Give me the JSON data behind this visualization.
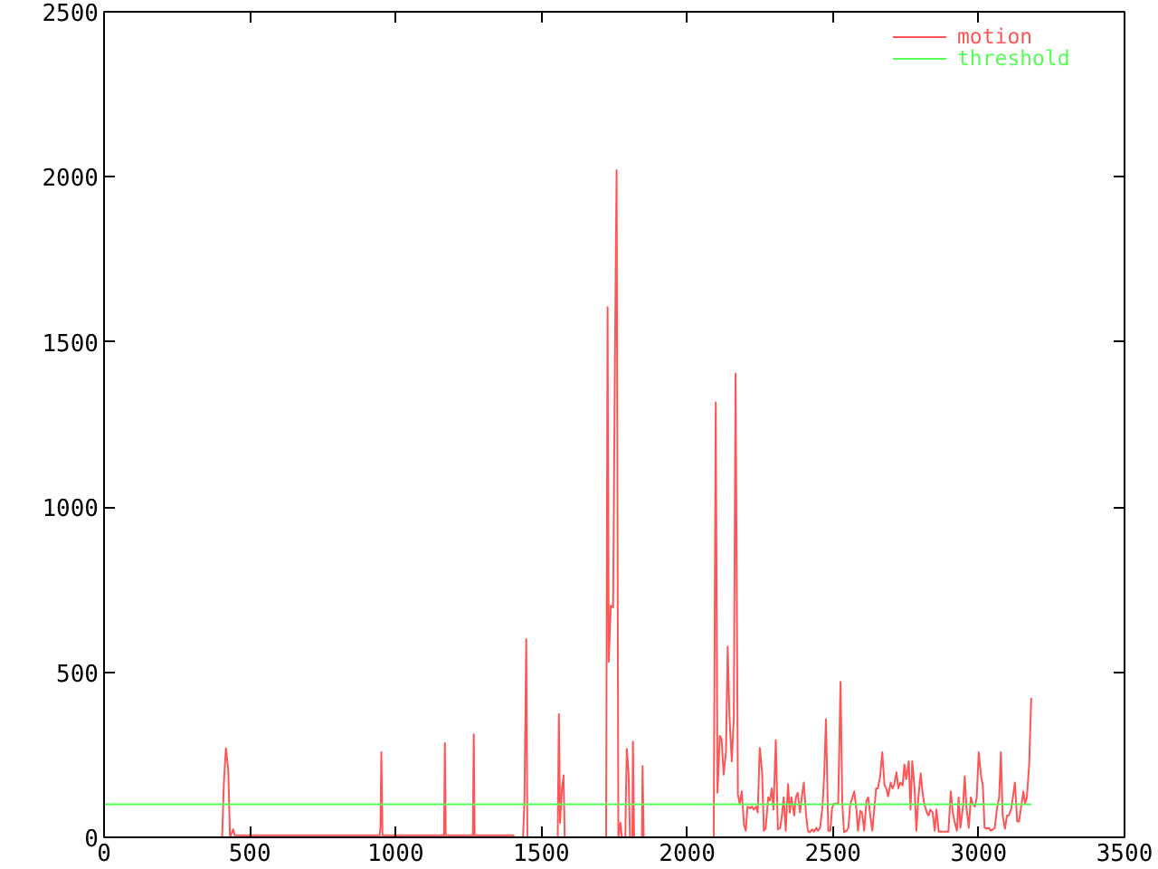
{
  "chart_data": {
    "type": "line",
    "xlim": [
      0,
      3500
    ],
    "xticks": [
      0,
      500,
      1000,
      1500,
      2000,
      2500,
      3000,
      3500
    ],
    "ylim": [
      0,
      2500
    ],
    "yticks": [
      0,
      500,
      1000,
      1500,
      2000,
      2500
    ],
    "legend": "top right",
    "series": [
      {
        "name": "motion",
        "color": "#ff5555",
        "x": [
          0,
          405,
          411,
          418,
          426,
          432,
          443,
          448,
          945,
          948,
          951,
          955,
          1166,
          1169,
          1172,
          1265,
          1268,
          1271,
          1404,
          1407,
          1437,
          1442,
          1448,
          1452,
          1556,
          1560,
          1564,
          1570,
          1576,
          1580,
          1722,
          1727,
          1731,
          1738,
          1746,
          1752,
          1758,
          1764,
          1771,
          1776,
          1788,
          1790,
          1793,
          1799,
          1804,
          1812,
          1814,
          1818,
          1845,
          1847,
          1851,
          2091,
          2098,
          2104,
          2112,
          2118,
          2125,
          2133,
          2139,
          2145,
          2153,
          2160,
          2166,
          2174,
          2180,
          2187,
          2195,
          2201,
          2207,
          2216,
          2222,
          2228,
          2236,
          2242,
          2249,
          2257,
          2263,
          2269,
          2278,
          2284,
          2290,
          2296,
          2304,
          2311,
          2319,
          2325,
          2331,
          2338,
          2346,
          2352,
          2358,
          2367,
          2373,
          2379,
          2387,
          2393,
          2400,
          2408,
          2414,
          2420,
          2429,
          2435,
          2443,
          2449,
          2456,
          2464,
          2470,
          2476,
          2484,
          2491,
          2497,
          2503,
          2511,
          2518,
          2526,
          2532,
          2538,
          2547,
          2553,
          2559,
          2567,
          2573,
          2580,
          2586,
          2594,
          2600,
          2607,
          2615,
          2621,
          2629,
          2635,
          2642,
          2648,
          2654,
          2662,
          2669,
          2677,
          2683,
          2689,
          2698,
          2704,
          2710,
          2718,
          2724,
          2731,
          2739,
          2745,
          2751,
          2760,
          2766,
          2772,
          2780,
          2786,
          2793,
          2801,
          2807,
          2813,
          2822,
          2828,
          2834,
          2842,
          2849,
          2855,
          2863,
          2869,
          2875,
          2884,
          2890,
          2896,
          2904,
          2911,
          2917,
          2925,
          2931,
          2937,
          2946,
          2952,
          2958,
          2966,
          2973,
          2979,
          2987,
          2993,
          3000,
          3008,
          3014,
          3020,
          3028,
          3035,
          3041,
          3049,
          3055,
          3062,
          3070,
          3076,
          3082,
          3090,
          3097,
          3103,
          3111,
          3117,
          3124,
          3132,
          3138,
          3144,
          3153,
          3159,
          3165,
          3173,
          3180
        ],
        "values": [
          0,
          0,
          166,
          270,
          203,
          0,
          24,
          6,
          6,
          30,
          258,
          6,
          6,
          285,
          6,
          6,
          312,
          6,
          6,
          0,
          0,
          115,
          600,
          0,
          0,
          373,
          44,
          142,
          188,
          0,
          0,
          1606,
          532,
          702,
          696,
          1418,
          2020,
          0,
          44,
          0,
          0,
          131,
          268,
          194,
          0,
          0,
          290,
          0,
          0,
          216,
          0,
          0,
          1317,
          135,
          307,
          298,
          190,
          258,
          578,
          367,
          230,
          367,
          1404,
          130,
          102,
          139,
          38,
          20,
          93,
          88,
          93,
          84,
          93,
          75,
          271,
          197,
          20,
          26,
          121,
          112,
          148,
          84,
          294,
          24,
          29,
          66,
          121,
          20,
          161,
          75,
          121,
          66,
          121,
          135,
          75,
          121,
          166,
          66,
          20,
          15,
          24,
          17,
          29,
          20,
          29,
          93,
          190,
          358,
          20,
          20,
          88,
          102,
          102,
          102,
          471,
          102,
          15,
          20,
          29,
          99,
          121,
          139,
          88,
          20,
          80,
          75,
          20,
          112,
          121,
          57,
          20,
          88,
          148,
          148,
          185,
          258,
          157,
          148,
          124,
          166,
          148,
          161,
          197,
          148,
          166,
          157,
          221,
          176,
          230,
          84,
          230,
          148,
          20,
          121,
          194,
          139,
          102,
          75,
          66,
          84,
          75,
          20,
          84,
          17,
          17,
          17,
          17,
          17,
          17,
          139,
          75,
          48,
          20,
          121,
          29,
          93,
          185,
          88,
          29,
          121,
          102,
          93,
          121,
          258,
          185,
          157,
          29,
          26,
          29,
          20,
          24,
          29,
          84,
          121,
          258,
          66,
          26,
          66,
          66,
          84,
          121,
          166,
          48,
          48,
          84,
          139,
          102,
          121,
          221,
          422
        ]
      },
      {
        "name": "threshold",
        "color": "#55ff55",
        "x": [
          0,
          3180
        ],
        "values": [
          100,
          100
        ]
      }
    ]
  }
}
